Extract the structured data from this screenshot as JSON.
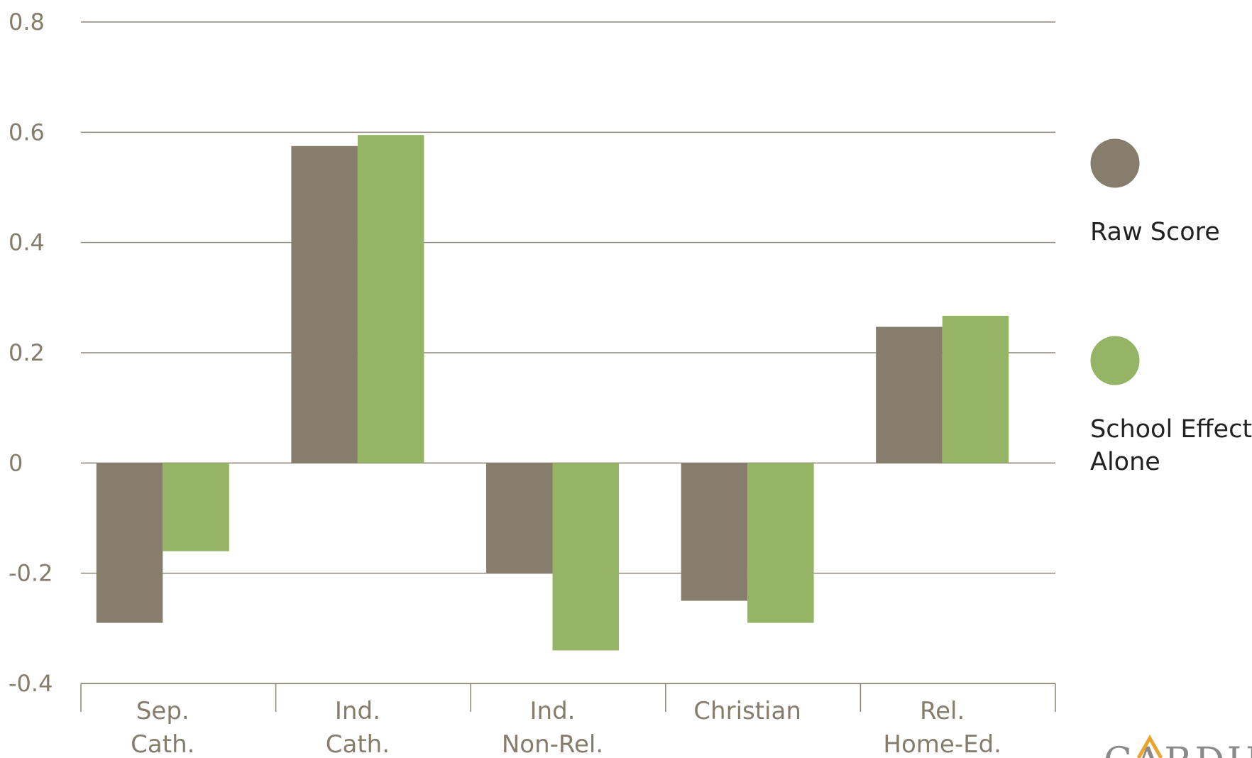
{
  "colors": {
    "raw": "#877d6c",
    "school": "#95b466",
    "grid": "#8c8577",
    "axis_text": "#867c6c",
    "logo_accent": "#e8a530"
  },
  "logo": {
    "text": "CARDUS"
  },
  "chart_data": {
    "type": "bar",
    "title": "",
    "xlabel": "",
    "ylabel": "",
    "categories": [
      [
        "Sep.",
        "Cath."
      ],
      [
        "Ind.",
        "Cath."
      ],
      [
        "Ind.",
        "Non-Rel."
      ],
      [
        "Christian"
      ],
      [
        "Rel.",
        "Home-Ed."
      ]
    ],
    "series": [
      {
        "name": "Raw Score",
        "values": [
          -0.29,
          0.575,
          -0.2,
          -0.25,
          0.247
        ]
      },
      {
        "name": "School Effect Alone",
        "values": [
          -0.16,
          0.595,
          -0.34,
          -0.29,
          0.267
        ]
      }
    ],
    "ylim": [
      -0.4,
      0.8
    ],
    "yticks": [
      0.8,
      0.6,
      0.4,
      0.2,
      0,
      -0.2,
      -0.4
    ],
    "ytick_labels": [
      "0.8",
      "0.6",
      "0.4",
      "0.2",
      "0",
      "-0.2",
      "-0.4"
    ],
    "grid": true,
    "legend_position": "right",
    "legend_labels": [
      [
        "Raw Score"
      ],
      [
        "School Effect",
        "Alone"
      ]
    ]
  }
}
